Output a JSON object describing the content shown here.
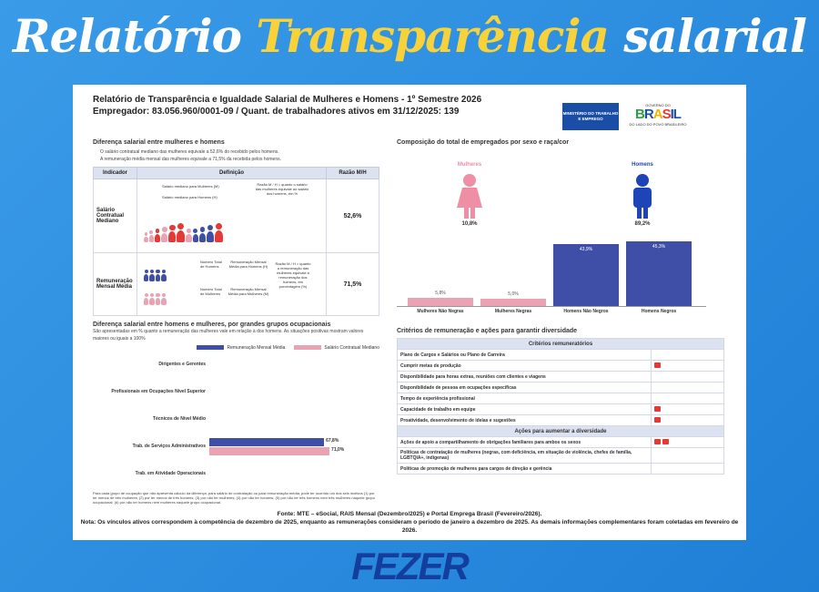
{
  "headline": {
    "part1": "Relatório",
    "part2": "Transparência",
    "part3": "salarial"
  },
  "report": {
    "title": "Relatório de Transparência e Igualdade Salarial de Mulheres e Homens - 1º Semestre 2026",
    "employer": "Empregador: 83.056.960/0001-09 / Quant. de trabalhadores ativos em 31/12/2025: 139",
    "logo_mte": "MINISTÉRIO DO TRABALHO E EMPREGO",
    "logo_gov": "GOVERNO DO",
    "logo_brasil": "BRASIL",
    "logo_gov_sub": "DO LADO DO POVO BRASILEIRO"
  },
  "gap": {
    "title": "Diferença salarial entre mulheres e homens",
    "bullets": [
      "O salário contratual mediano das mulheres equivale a 52,6% do recebido pelos homens.",
      "A remuneração média mensal das mulheres equivale a 71,5% da recebida pelos homens."
    ],
    "table_headers": [
      "Indicador",
      "Definição",
      "Razão M/H"
    ],
    "rows": [
      {
        "name": "Salário Contratual Mediano",
        "lbl_w": "Salário mediano para Mulheres (M)",
        "lbl_m": "Salário mediano para Homens (H)",
        "desc": "Razão M / H = quanto o salário das mulheres equivale ao salário dos homens, em %",
        "value": "52,6%"
      },
      {
        "name": "Remuneração Mensal Média",
        "lbl_total_m": "Número Total de Homens",
        "lbl_total_w": "Número Total de Mulheres",
        "lbl_rem_m": "Remuneração Mensal Média para Homens (H)",
        "lbl_rem_w": "Remuneração Mensal Média para Mulheres (M)",
        "desc": "Razão M / H = quanto a remuneração das mulheres equivale à remuneração dos homens, em porcentagem (%)",
        "value": "71,5%"
      }
    ]
  },
  "occupations": {
    "title": "Diferença salarial entre homens e mulheres, por grandes grupos ocupacionais",
    "subtitle": "São apresentadas em % quanto a remuneração das mulheres vale em relação à dos homens. As situações positivas mostram valores maiores ou iguais a 100%",
    "legend": [
      "Remuneração Mensal Média",
      "Salário Contratual Mediano"
    ],
    "footnote": "Para cada grupo de ocupação que não apresenta cálculo da diferença, para salário de contratação ou para remuneração média, pode ter ocorrido um dos seis motivos (1) por ter menos de três mulheres; (2) por ter menos de três homens; (3) por não ter mulheres; (4) por não ter homens; (5) por não ter três homens nem três mulheres naquele grupo ocupacional; (6) por não ter homens nem mulheres naquele grupo ocupacional."
  },
  "chart_data": [
    {
      "type": "bar",
      "title": "Diferença salarial entre homens e mulheres, por grandes grupos ocupacionais",
      "categories": [
        "Dirigentes e Gerentes",
        "Profissionais em Ocupações Nível Superior",
        "Técnicos de Nível Médio",
        "Trab. de Serviços Administrativos",
        "Trab. em Atividade Operacionais"
      ],
      "series": [
        {
          "name": "Remuneração Mensal Média",
          "values": [
            null,
            null,
            null,
            67.8,
            null
          ],
          "labels": [
            "",
            "",
            "",
            "67,8%",
            ""
          ],
          "color": "#3f4fa8"
        },
        {
          "name": "Salário Contratual Mediano",
          "values": [
            null,
            null,
            null,
            71.0,
            null
          ],
          "labels": [
            "",
            "",
            "",
            "71,0%",
            ""
          ],
          "color": "#e9a3b3"
        }
      ],
      "orientation": "horizontal",
      "xlim": [
        0,
        100
      ]
    },
    {
      "type": "bar",
      "title": "Composição do total de empregados por sexo e raça/cor",
      "categories": [
        "Mulheres Não Negras",
        "Mulheres Negras",
        "Homens Não Negros",
        "Homens Negros"
      ],
      "values": [
        5.8,
        5.0,
        43.9,
        45.3
      ],
      "labels": [
        "5,8%",
        "5,0%",
        "43,9%",
        "45,3%"
      ],
      "colors": [
        "#e9a3b3",
        "#e9a3b3",
        "#3f4fa8",
        "#3f4fa8"
      ],
      "ylim": [
        0,
        50
      ],
      "totals": [
        {
          "name": "Mulheres",
          "value": "10,8%",
          "color": "#ee8fa6"
        },
        {
          "name": "Homens",
          "value": "89,2%",
          "color": "#1e45b8"
        }
      ]
    }
  ],
  "criteria": {
    "title": "Critérios de remuneração e ações para garantir diversidade",
    "header1": "Critérios remuneratórios",
    "items1": [
      {
        "label": "Plano de Cargos e Salários ou Plano de Carreira",
        "marks": 0
      },
      {
        "label": "Cumprir metas de produção",
        "marks": 1
      },
      {
        "label": "Disponibilidade para horas extras, reuniões com clientes e viagens",
        "marks": 0
      },
      {
        "label": "Disponibilidade de pessoa em ocupações específicas",
        "marks": 0
      },
      {
        "label": "Tempo de experiência profissional",
        "marks": 0
      },
      {
        "label": "Capacidade de trabalho em equipe",
        "marks": 1
      },
      {
        "label": "Proatividade, desenvolvimento de ideias e sugestões",
        "marks": 1
      }
    ],
    "header2": "Ações para aumentar a diversidade",
    "items2": [
      {
        "label": "Ações de apoio a compartilhamento de obrigações familiares para ambos os sexos",
        "marks": 2
      },
      {
        "label": "Políticas de contratação de mulheres (negras, com deficiência, em situação de violência, chefes de família, LGBTQIA+, indígenas)",
        "marks": 0
      },
      {
        "label": "Políticas de promoção de mulheres para cargos de direção e gerência",
        "marks": 0
      }
    ]
  },
  "footer": {
    "source": "Fonte: MTE – eSocial, RAIS Mensal (Dezembro/2025) e Portal Emprega Brasil (Fevereiro/2026).",
    "note": "Nota: Os vínculos ativos correspondem à competência de dezembro de 2025, enquanto as remunerações consideram o período de janeiro a dezembro de 2025. As demais informações complementares foram coletadas em fevereiro de 2026."
  },
  "brand": "FEZER",
  "colors": {
    "men": "#3f4fa8",
    "women": "#e9a3b3",
    "accent": "#f7d23a",
    "bg": "#2f8fe0"
  }
}
